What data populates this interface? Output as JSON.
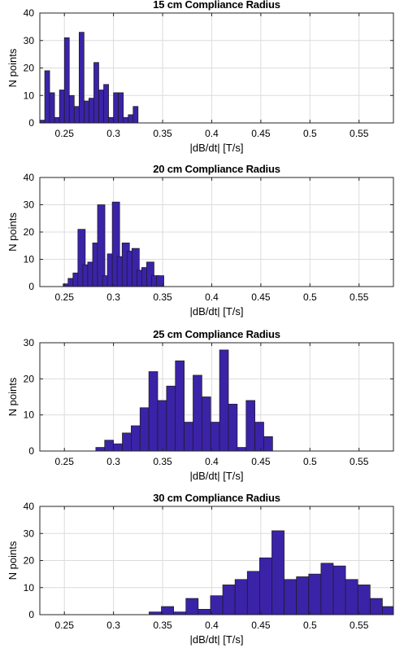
{
  "chart_data": [
    {
      "type": "bar",
      "title": "15 cm Compliance Radius",
      "xlabel": "|dB/dt| [T/s]",
      "ylabel": "N points",
      "xlim": [
        0.225,
        0.585
      ],
      "ylim": [
        0,
        40
      ],
      "xticks": [
        "0.25",
        "0.3",
        "0.35",
        "0.4",
        "0.45",
        "0.5",
        "0.55"
      ],
      "yticks": [
        "0",
        "10",
        "20",
        "30",
        "40"
      ],
      "grid": true,
      "bin_width": 0.005,
      "bins": [
        {
          "x": 0.2275,
          "y": 1
        },
        {
          "x": 0.2325,
          "y": 19
        },
        {
          "x": 0.2375,
          "y": 11
        },
        {
          "x": 0.2425,
          "y": 2
        },
        {
          "x": 0.2475,
          "y": 12
        },
        {
          "x": 0.2525,
          "y": 31
        },
        {
          "x": 0.2575,
          "y": 10
        },
        {
          "x": 0.2625,
          "y": 6
        },
        {
          "x": 0.2675,
          "y": 33
        },
        {
          "x": 0.2725,
          "y": 8
        },
        {
          "x": 0.2775,
          "y": 9
        },
        {
          "x": 0.2825,
          "y": 22
        },
        {
          "x": 0.2875,
          "y": 12
        },
        {
          "x": 0.2925,
          "y": 14
        },
        {
          "x": 0.2975,
          "y": 2
        },
        {
          "x": 0.3025,
          "y": 11
        },
        {
          "x": 0.3075,
          "y": 11
        },
        {
          "x": 0.3125,
          "y": 2
        },
        {
          "x": 0.3175,
          "y": 3
        },
        {
          "x": 0.3225,
          "y": 6
        }
      ]
    },
    {
      "type": "bar",
      "title": "20 cm Compliance Radius",
      "xlabel": "|dB/dt| [T/s]",
      "ylabel": "N points",
      "xlim": [
        0.225,
        0.585
      ],
      "ylim": [
        0,
        40
      ],
      "xticks": [
        "0.25",
        "0.3",
        "0.35",
        "0.4",
        "0.45",
        "0.5",
        "0.55"
      ],
      "yticks": [
        "0",
        "10",
        "20",
        "30",
        "40"
      ],
      "grid": true,
      "bin_width": 0.0075,
      "bins": [
        {
          "x": 0.2525,
          "y": 1
        },
        {
          "x": 0.2575,
          "y": 3
        },
        {
          "x": 0.2625,
          "y": 5
        },
        {
          "x": 0.2675,
          "y": 21
        },
        {
          "x": 0.2725,
          "y": 8
        },
        {
          "x": 0.2775,
          "y": 9
        },
        {
          "x": 0.2825,
          "y": 16
        },
        {
          "x": 0.2875,
          "y": 30
        },
        {
          "x": 0.2925,
          "y": 4
        },
        {
          "x": 0.2975,
          "y": 12
        },
        {
          "x": 0.3025,
          "y": 31
        },
        {
          "x": 0.3075,
          "y": 11
        },
        {
          "x": 0.3125,
          "y": 16
        },
        {
          "x": 0.3175,
          "y": 13
        },
        {
          "x": 0.3225,
          "y": 14
        },
        {
          "x": 0.3275,
          "y": 6
        },
        {
          "x": 0.3325,
          "y": 7
        },
        {
          "x": 0.3375,
          "y": 9
        },
        {
          "x": 0.3425,
          "y": 4
        },
        {
          "x": 0.3475,
          "y": 4
        }
      ]
    },
    {
      "type": "bar",
      "title": "25 cm Compliance Radius",
      "xlabel": "|dB/dt| [T/s]",
      "ylabel": "N points",
      "xlim": [
        0.225,
        0.585
      ],
      "ylim": [
        0,
        30
      ],
      "xticks": [
        "0.25",
        "0.3",
        "0.35",
        "0.4",
        "0.45",
        "0.5",
        "0.55"
      ],
      "yticks": [
        "0",
        "10",
        "20",
        "30"
      ],
      "grid": true,
      "bin_width": 0.009,
      "bins": [
        {
          "x": 0.2865,
          "y": 1
        },
        {
          "x": 0.2955,
          "y": 3
        },
        {
          "x": 0.3045,
          "y": 2
        },
        {
          "x": 0.3135,
          "y": 5
        },
        {
          "x": 0.3225,
          "y": 7
        },
        {
          "x": 0.3315,
          "y": 12
        },
        {
          "x": 0.3405,
          "y": 22
        },
        {
          "x": 0.3495,
          "y": 14
        },
        {
          "x": 0.3585,
          "y": 18
        },
        {
          "x": 0.3675,
          "y": 25
        },
        {
          "x": 0.3765,
          "y": 8
        },
        {
          "x": 0.3855,
          "y": 21
        },
        {
          "x": 0.3945,
          "y": 15
        },
        {
          "x": 0.4035,
          "y": 8
        },
        {
          "x": 0.4125,
          "y": 28
        },
        {
          "x": 0.4215,
          "y": 13
        },
        {
          "x": 0.4305,
          "y": 1
        },
        {
          "x": 0.4395,
          "y": 14
        },
        {
          "x": 0.4485,
          "y": 8
        },
        {
          "x": 0.4575,
          "y": 4
        }
      ]
    },
    {
      "type": "bar",
      "title": "30 cm Compliance Radius",
      "xlabel": "|dB/dt| [T/s]",
      "ylabel": "N points",
      "xlim": [
        0.225,
        0.585
      ],
      "ylim": [
        0,
        40
      ],
      "xticks": [
        "0.25",
        "0.3",
        "0.35",
        "0.4",
        "0.45",
        "0.5",
        "0.55"
      ],
      "yticks": [
        "0",
        "10",
        "20",
        "30",
        "40"
      ],
      "grid": true,
      "bin_width": 0.0125,
      "bins": [
        {
          "x": 0.3425,
          "y": 1
        },
        {
          "x": 0.355,
          "y": 3
        },
        {
          "x": 0.3675,
          "y": 1
        },
        {
          "x": 0.38,
          "y": 6
        },
        {
          "x": 0.3925,
          "y": 2
        },
        {
          "x": 0.405,
          "y": 7
        },
        {
          "x": 0.4175,
          "y": 11
        },
        {
          "x": 0.43,
          "y": 13
        },
        {
          "x": 0.4425,
          "y": 16
        },
        {
          "x": 0.455,
          "y": 21
        },
        {
          "x": 0.4675,
          "y": 31
        },
        {
          "x": 0.48,
          "y": 13
        },
        {
          "x": 0.4925,
          "y": 14
        },
        {
          "x": 0.505,
          "y": 15
        },
        {
          "x": 0.5175,
          "y": 19
        },
        {
          "x": 0.53,
          "y": 18
        },
        {
          "x": 0.5425,
          "y": 13
        },
        {
          "x": 0.555,
          "y": 11
        },
        {
          "x": 0.5675,
          "y": 6
        },
        {
          "x": 0.58,
          "y": 3
        }
      ]
    }
  ]
}
